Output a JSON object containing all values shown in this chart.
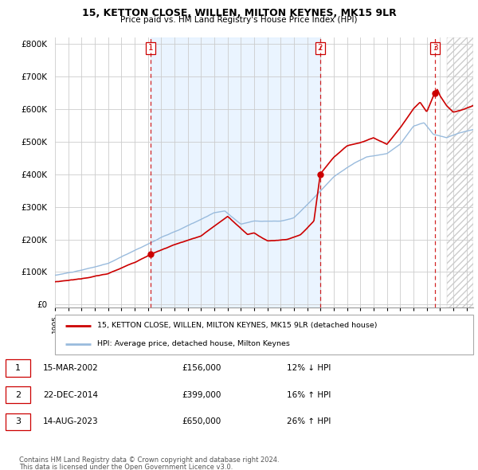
{
  "title1": "15, KETTON CLOSE, WILLEN, MILTON KEYNES, MK15 9LR",
  "title2": "Price paid vs. HM Land Registry's House Price Index (HPI)",
  "ylim": [
    0,
    800000
  ],
  "yticks": [
    0,
    100000,
    200000,
    300000,
    400000,
    500000,
    600000,
    700000,
    800000
  ],
  "xmin": 1995.0,
  "xmax": 2026.5,
  "sales": [
    {
      "label": "1",
      "year": 2002.21,
      "price": 156000,
      "date": "15-MAR-2002"
    },
    {
      "label": "2",
      "year": 2014.98,
      "price": 399000,
      "date": "22-DEC-2014"
    },
    {
      "label": "3",
      "year": 2023.62,
      "price": 650000,
      "date": "14-AUG-2023"
    }
  ],
  "legend_house": "15, KETTON CLOSE, WILLEN, MILTON KEYNES, MK15 9LR (detached house)",
  "legend_hpi": "HPI: Average price, detached house, Milton Keynes",
  "footnote1": "Contains HM Land Registry data © Crown copyright and database right 2024.",
  "footnote2": "This data is licensed under the Open Government Licence v3.0.",
  "house_color": "#cc0000",
  "hpi_color": "#99bbdd",
  "shade_color": "#ddeeff",
  "vline_color": "#cc0000",
  "table_rows": [
    {
      "num": "1",
      "date": "15-MAR-2002",
      "price": "£156,000",
      "pct": "12% ↓ HPI"
    },
    {
      "num": "2",
      "date": "22-DEC-2014",
      "price": "£399,000",
      "pct": "16% ↑ HPI"
    },
    {
      "num": "3",
      "date": "14-AUG-2023",
      "price": "£650,000",
      "pct": "26% ↑ HPI"
    }
  ],
  "hpi_seed": 10,
  "house_seed": 20,
  "n_points": 500
}
